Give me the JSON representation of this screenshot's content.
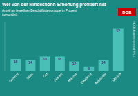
{
  "chart_data": {
    "type": "bar",
    "title": "Wer von der Mindestlohn-Erhöhung profitiert hat",
    "subtitle": "Anteil an jeweiliger Beschäftigtengruppe in Prozent\n(gerundet)",
    "categories": [
      "Gesamt",
      "West",
      "Ost",
      "Frauen",
      "Männer",
      "Deutsche",
      "Ausländer",
      "Minijob"
    ],
    "values": [
      15,
      14,
      18,
      18,
      12,
      6,
      14,
      52
    ],
    "color": "#4abfb8",
    "ylim": [
      0,
      60
    ],
    "yticks": [],
    "tick_labels": "x",
    "data_labels": true,
    "annotations": [
      "DGB",
      "© DGB-Bundesvorstand 2015"
    ]
  }
}
